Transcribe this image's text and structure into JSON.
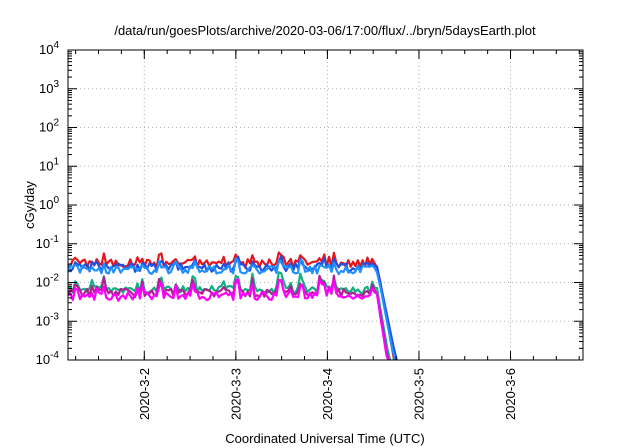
{
  "chart_data": {
    "type": "line",
    "title": "/data/run/goesPlots/archive/2020-03-06/17:00/flux/../bryn/5daysEarth.plot",
    "xlabel": "Coordinated Universal Time (UTC)",
    "ylabel": "cGy/day",
    "yscale": "log",
    "xlim": [
      "2020-03-01T04:00",
      "2020-03-06T19:00"
    ],
    "ylim": [
      0.0001,
      10000
    ],
    "grid": true,
    "x_ticks": [
      {
        "date": "2020-03-02T00:00",
        "label": "2020-3-2"
      },
      {
        "date": "2020-03-03T00:00",
        "label": "2020-3-3"
      },
      {
        "date": "2020-03-04T00:00",
        "label": "2020-3-4"
      },
      {
        "date": "2020-03-05T00:00",
        "label": "2020-3-5"
      },
      {
        "date": "2020-03-06T00:00",
        "label": "2020-3-6"
      }
    ],
    "y_ticks": [
      {
        "value": 0.0001,
        "base": "10",
        "exp": "-4"
      },
      {
        "value": 0.001,
        "base": "10",
        "exp": "-3"
      },
      {
        "value": 0.01,
        "base": "10",
        "exp": "-2"
      },
      {
        "value": 0.1,
        "base": "10",
        "exp": "-1"
      },
      {
        "value": 1,
        "base": "10",
        "exp": "0"
      },
      {
        "value": 10,
        "base": "10",
        "exp": "1"
      },
      {
        "value": 100,
        "base": "10",
        "exp": "2"
      },
      {
        "value": 1000,
        "base": "10",
        "exp": "3"
      },
      {
        "value": 10000,
        "base": "10",
        "exp": "4"
      }
    ],
    "series": [
      {
        "color": "#e8141c",
        "base": 0.032,
        "start": "2020-03-01T04:00",
        "end": "2020-03-04T13:00",
        "drop_end": "2020-03-04T18:30"
      },
      {
        "color": "#2050e0",
        "base": 0.025,
        "start": "2020-03-01T04:00",
        "end": "2020-03-04T13:00",
        "drop_end": "2020-03-04T19:30"
      },
      {
        "color": "#1e90ff",
        "base": 0.022,
        "start": "2020-03-01T04:00",
        "end": "2020-03-04T13:00",
        "drop_end": "2020-03-04T19:00"
      },
      {
        "color": "#10b080",
        "base": 0.0065,
        "start": "2020-03-01T04:00",
        "end": "2020-03-04T13:00",
        "drop_end": "2020-03-04T18:30"
      },
      {
        "color": "#b02090",
        "base": 0.0055,
        "start": "2020-03-01T04:00",
        "end": "2020-03-04T13:00",
        "drop_end": "2020-03-04T18:00"
      },
      {
        "color": "#ff00ff",
        "base": 0.0045,
        "start": "2020-03-01T04:00",
        "end": "2020-03-04T13:00",
        "drop_end": "2020-03-04T18:00"
      }
    ]
  }
}
